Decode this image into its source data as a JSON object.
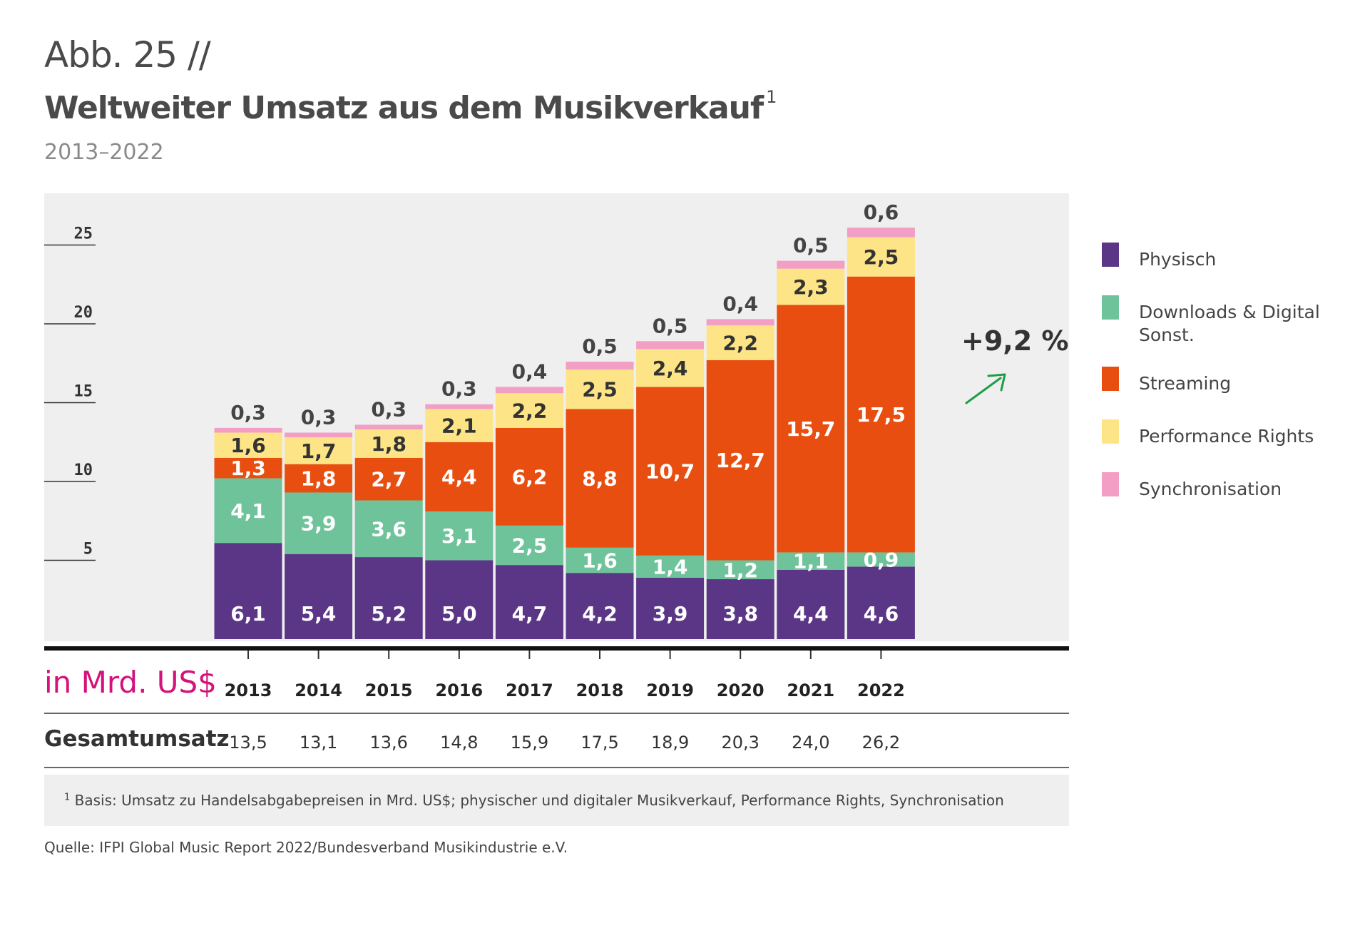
{
  "header": {
    "figure_number": "Abb. 25 //",
    "title": "Weltweiter Umsatz aus dem Musikverkauf",
    "title_footnote_mark": "1",
    "subtitle": "2013–2022"
  },
  "unit_label": "in Mrd. US$",
  "total_label": "Gesamtumsatz",
  "growth_label": "+9,2 %",
  "footnote_mark": "1",
  "footnote": "Basis: Umsatz zu Handelsabgabepreisen in Mrd. US$; physischer und digitaler Musikverkauf, Performance Rights, Synchronisation",
  "source": "Quelle: IFPI Global Music Report 2022/Bundesverband Musikindustrie e.V.",
  "legend": [
    {
      "name": "Physisch",
      "color": "#5b3586"
    },
    {
      "name": "Downloads & Digital Sonst.",
      "color": "#6fc39b"
    },
    {
      "name": "Streaming",
      "color": "#e84e10"
    },
    {
      "name": "Performance Rights",
      "color": "#fde486"
    },
    {
      "name": "Synchronisation",
      "color": "#f29ec5"
    }
  ],
  "chart_data": {
    "type": "bar",
    "stacked": true,
    "categories": [
      "2013",
      "2014",
      "2015",
      "2016",
      "2017",
      "2018",
      "2019",
      "2020",
      "2021",
      "2022"
    ],
    "ylim": [
      0,
      25
    ],
    "yticks": [
      5,
      10,
      15,
      20,
      25
    ],
    "series": [
      {
        "name": "Physisch",
        "color": "#5b3586",
        "values": [
          6.1,
          5.4,
          5.2,
          5.0,
          4.7,
          4.2,
          3.9,
          3.8,
          4.4,
          4.6
        ],
        "labels": [
          "6,1",
          "5,4",
          "5,2",
          "5,0",
          "4,7",
          "4,2",
          "3,9",
          "3,8",
          "4,4",
          "4,6"
        ]
      },
      {
        "name": "Downloads & Digital Sonst.",
        "color": "#6fc39b",
        "values": [
          4.1,
          3.9,
          3.6,
          3.1,
          2.5,
          1.6,
          1.4,
          1.2,
          1.1,
          0.9
        ],
        "labels": [
          "4,1",
          "3,9",
          "3,6",
          "3,1",
          "2,5",
          "1,6",
          "1,4",
          "1,2",
          "1,1",
          "0,9"
        ]
      },
      {
        "name": "Streaming",
        "color": "#e84e10",
        "values": [
          1.3,
          1.8,
          2.7,
          4.4,
          6.2,
          8.8,
          10.7,
          12.7,
          15.7,
          17.5
        ],
        "labels": [
          "1,3",
          "1,8",
          "2,7",
          "4,4",
          "6,2",
          "8,8",
          "10,7",
          "12,7",
          "15,7",
          "17,5"
        ]
      },
      {
        "name": "Performance Rights",
        "color": "#fde486",
        "values": [
          1.6,
          1.7,
          1.8,
          2.1,
          2.2,
          2.5,
          2.4,
          2.2,
          2.3,
          2.5
        ],
        "labels": [
          "1,6",
          "1,7",
          "1,8",
          "2,1",
          "2,2",
          "2,5",
          "2,4",
          "2,2",
          "2,3",
          "2,5"
        ]
      },
      {
        "name": "Synchronisation",
        "color": "#f29ec5",
        "values": [
          0.3,
          0.3,
          0.3,
          0.3,
          0.4,
          0.5,
          0.5,
          0.4,
          0.5,
          0.6
        ],
        "labels": [
          "0,3",
          "0,3",
          "0,3",
          "0,3",
          "0,4",
          "0,5",
          "0,5",
          "0,4",
          "0,5",
          "0,6"
        ]
      }
    ],
    "totals": [
      13.5,
      13.1,
      13.6,
      14.8,
      15.9,
      17.5,
      18.9,
      20.3,
      24.0,
      26.2
    ],
    "total_labels": [
      "13,5",
      "13,1",
      "13,6",
      "14,8",
      "15,9",
      "17,5",
      "18,9",
      "20,3",
      "24,0",
      "26,2"
    ]
  }
}
